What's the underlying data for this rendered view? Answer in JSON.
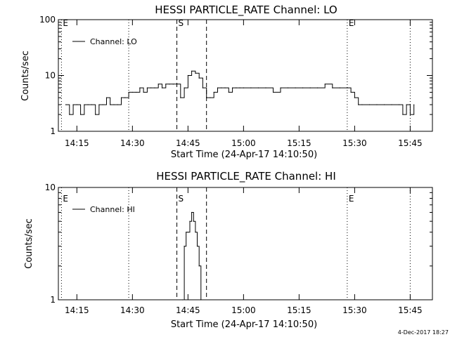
{
  "footer": {
    "date_stamp": "4-Dec-2017 18:27"
  },
  "chart_data": [
    {
      "type": "line",
      "title": "HESSI PARTICLE_RATE Channel: LO",
      "xlabel": "Start Time (24-Apr-17 14:10:50)",
      "ylabel": "Counts/sec",
      "y_scale": "log",
      "ylim": [
        1,
        100
      ],
      "y_ticks": [
        1,
        10,
        100
      ],
      "y_tick_labels": [
        "1",
        "10",
        "100"
      ],
      "xlim": [
        "14:10",
        "15:51"
      ],
      "x_ticks": [
        "14:15",
        "14:30",
        "14:45",
        "15:00",
        "15:15",
        "15:30",
        "15:45"
      ],
      "grid": false,
      "legend": {
        "position": "top-left",
        "entries": [
          "Channel: LO"
        ]
      },
      "markers": [
        {
          "label": "E",
          "time": "14:10:50",
          "style": "dotted"
        },
        {
          "label": "",
          "time": "14:29",
          "style": "dotted"
        },
        {
          "label": "S",
          "time": "14:42",
          "style": "dashed"
        },
        {
          "label": "",
          "time": "14:50",
          "style": "dashed"
        },
        {
          "label": "E",
          "time": "15:28",
          "style": "dotted"
        },
        {
          "label": "",
          "time": "15:45",
          "style": "dotted"
        }
      ],
      "series": [
        {
          "x": [
            "14:12",
            "14:13",
            "14:14",
            "14:15",
            "14:16",
            "14:17",
            "14:18",
            "14:19",
            "14:20",
            "14:21",
            "14:22",
            "14:23",
            "14:24",
            "14:25",
            "14:26",
            "14:27",
            "14:28",
            "14:29",
            "14:30",
            "14:31",
            "14:32",
            "14:33",
            "14:34",
            "14:35",
            "14:36",
            "14:37",
            "14:38",
            "14:39",
            "14:40",
            "14:41",
            "14:42",
            "14:43",
            "14:44",
            "14:45",
            "14:46",
            "14:47",
            "14:48",
            "14:49",
            "14:50",
            "14:51",
            "14:52",
            "14:53",
            "14:54",
            "14:55",
            "14:56",
            "14:57",
            "14:58",
            "14:59",
            "15:00",
            "15:02",
            "15:04",
            "15:06",
            "15:08",
            "15:10",
            "15:12",
            "15:14",
            "15:16",
            "15:18",
            "15:20",
            "15:22",
            "15:24",
            "15:26",
            "15:28",
            "15:29",
            "15:30",
            "15:31",
            "15:32",
            "15:34",
            "15:36",
            "15:38",
            "15:40",
            "15:42",
            "15:43",
            "15:44",
            "15:45",
            "15:46"
          ],
          "values": [
            3,
            2,
            3,
            3,
            2,
            3,
            3,
            3,
            2,
            3,
            3,
            4,
            3,
            3,
            3,
            4,
            4,
            5,
            5,
            5,
            6,
            5,
            6,
            6,
            6,
            7,
            6,
            7,
            7,
            7,
            7,
            4,
            6,
            10,
            12,
            11,
            9,
            6,
            4,
            4,
            5,
            6,
            6,
            6,
            5,
            6,
            6,
            6,
            6,
            6,
            6,
            6,
            5,
            6,
            6,
            6,
            6,
            6,
            6,
            7,
            6,
            6,
            6,
            5,
            4,
            3,
            3,
            3,
            3,
            3,
            3,
            3,
            2,
            3,
            2,
            3
          ]
        }
      ]
    },
    {
      "type": "line",
      "title": "HESSI PARTICLE_RATE Channel: HI",
      "xlabel": "Start Time (24-Apr-17 14:10:50)",
      "ylabel": "Counts/sec",
      "y_scale": "log",
      "ylim": [
        1,
        10
      ],
      "y_ticks": [
        1,
        10
      ],
      "y_tick_labels": [
        "1",
        "10"
      ],
      "xlim": [
        "14:10",
        "15:51"
      ],
      "x_ticks": [
        "14:15",
        "14:30",
        "14:45",
        "15:00",
        "15:15",
        "15:30",
        "15:45"
      ],
      "grid": false,
      "legend": {
        "position": "top-left",
        "entries": [
          "Channel: HI"
        ]
      },
      "markers": [
        {
          "label": "E",
          "time": "14:10:50",
          "style": "dotted"
        },
        {
          "label": "",
          "time": "14:29",
          "style": "dotted"
        },
        {
          "label": "S",
          "time": "14:42",
          "style": "dashed"
        },
        {
          "label": "",
          "time": "14:50",
          "style": "dashed"
        },
        {
          "label": "E",
          "time": "15:28",
          "style": "dotted"
        },
        {
          "label": "",
          "time": "15:45",
          "style": "dotted"
        }
      ],
      "series": [
        {
          "x": [
            "14:43:30",
            "14:44",
            "14:44:30",
            "14:45",
            "14:45:30",
            "14:46",
            "14:46:30",
            "14:47",
            "14:47:30",
            "14:48",
            "14:48:30"
          ],
          "values": [
            1,
            3,
            4,
            4,
            5,
            6,
            5,
            4,
            3,
            2,
            1
          ]
        }
      ]
    }
  ]
}
